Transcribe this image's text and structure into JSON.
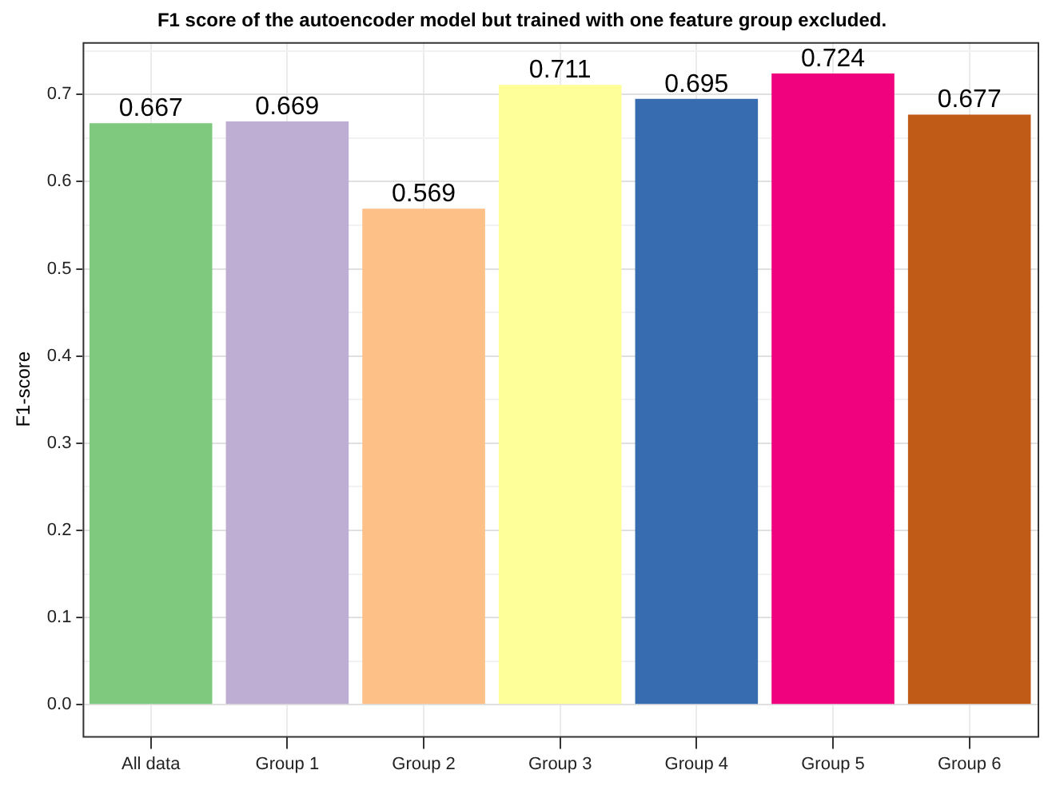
{
  "chart_data": {
    "type": "bar",
    "title": "F1 score of the autoencoder model but trained with one feature group excluded.",
    "ylabel": "F1-score",
    "categories": [
      "All data",
      "Group 1",
      "Group 2",
      "Group 3",
      "Group 4",
      "Group 5",
      "Group 6"
    ],
    "values": [
      0.667,
      0.669,
      0.569,
      0.711,
      0.695,
      0.724,
      0.677
    ],
    "colors": [
      "#7fc97f",
      "#beaed4",
      "#fdc086",
      "#ffff99",
      "#386cb0",
      "#f0027f",
      "#bf5b17"
    ],
    "ylim": [
      -0.036,
      0.76
    ],
    "yticks": [
      {
        "value": 0,
        "label": "0.0"
      },
      {
        "value": 0.05,
        "label": null
      },
      0.1,
      {
        "value": 0.15,
        "label": null
      },
      0.2,
      {
        "value": 0.25,
        "label": null
      },
      0.3,
      {
        "value": 0.35,
        "label": null
      },
      0.4,
      {
        "value": 0.45,
        "label": null
      },
      0.5,
      {
        "value": 0.55,
        "label": null
      },
      0.6,
      {
        "value": 0.65,
        "label": null
      },
      0.7,
      {
        "value": 0.75,
        "label": null
      }
    ],
    "grid": true,
    "data_labels": true,
    "legend": false
  }
}
